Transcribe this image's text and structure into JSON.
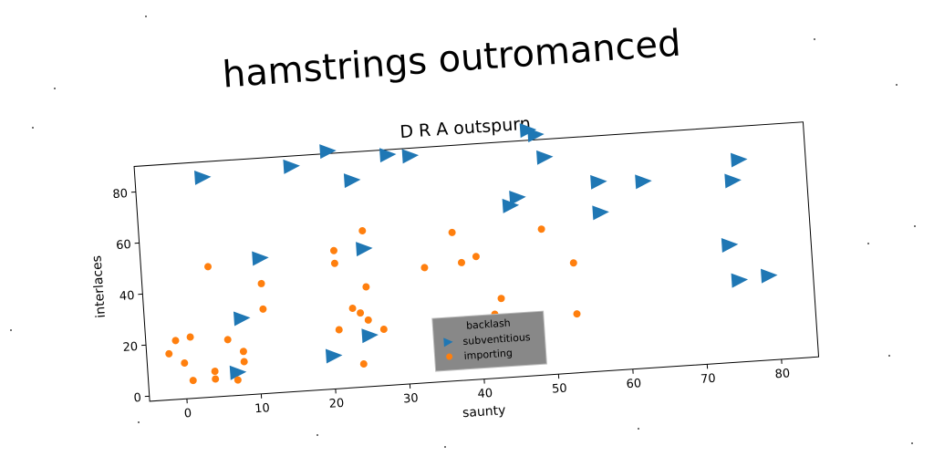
{
  "chart_data": {
    "type": "scatter",
    "suptitle": "hamstrings outromanced",
    "title": "D R A outspurn",
    "xlabel": "saunty",
    "ylabel": "interlaces",
    "xlim": [
      -5,
      85
    ],
    "ylim": [
      -2,
      90
    ],
    "xticks": [
      0,
      10,
      20,
      30,
      40,
      50,
      60,
      70,
      80
    ],
    "yticks": [
      0,
      20,
      40,
      60,
      80
    ],
    "grid": false,
    "legend": {
      "title": "backlash",
      "placement": "lower-center"
    },
    "series": [
      {
        "name": "subventitious",
        "marker": "triangle-right",
        "color": "#1f77b4",
        "x": [
          4,
          16,
          21,
          24,
          29,
          32,
          48,
          49,
          50,
          57,
          63,
          46,
          45,
          57,
          76,
          75,
          74,
          75,
          79,
          11,
          8,
          7,
          20,
          25,
          25
        ],
        "y": [
          84,
          86,
          91,
          79,
          88,
          87,
          94,
          92,
          83,
          72,
          71,
          68,
          65,
          60,
          77,
          69,
          44,
          30,
          31,
          51,
          28,
          7,
          11,
          52,
          18
        ]
      },
      {
        "name": "importing",
        "marker": "circle",
        "color": "#ff7f0e",
        "x": [
          -2,
          -1,
          0,
          1,
          1,
          4,
          4,
          4,
          6,
          7,
          8,
          8,
          11,
          11,
          21,
          21,
          21,
          23,
          24,
          24,
          25,
          25,
          25,
          27,
          33,
          37,
          38,
          40,
          43,
          53,
          53,
          49,
          43,
          42
        ],
        "y": [
          16,
          21,
          12,
          5,
          22,
          49,
          5,
          8,
          20,
          4,
          11,
          15,
          41,
          31,
          21,
          52,
          47,
          29,
          27,
          7,
          37,
          24,
          59,
          20,
          43,
          56,
          44,
          46,
          15,
          41,
          21,
          55,
          29,
          23
        ]
      }
    ]
  }
}
